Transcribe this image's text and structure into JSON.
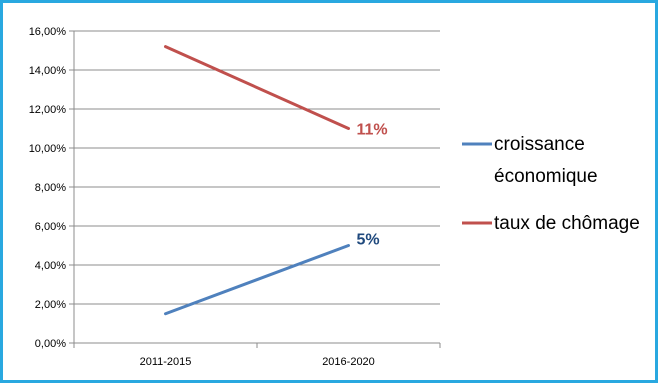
{
  "chart_data": {
    "type": "line",
    "categories": [
      "2011-2015",
      "2016-2020"
    ],
    "ylim": [
      0,
      0.16
    ],
    "yticks": [
      "0,00%",
      "2,00%",
      "4,00%",
      "6,00%",
      "8,00%",
      "10,00%",
      "12,00%",
      "14,00%",
      "16,00%"
    ],
    "grid": true,
    "legend_position": "right",
    "series": [
      {
        "name_lines": [
          "croissance",
          "économique"
        ],
        "values": [
          0.015,
          0.05
        ],
        "color": "#4f81bd",
        "end_label": "5%"
      },
      {
        "name_lines": [
          "taux de chômage"
        ],
        "values": [
          0.152,
          0.11
        ],
        "color": "#c0504d",
        "end_label": "11%"
      }
    ]
  }
}
